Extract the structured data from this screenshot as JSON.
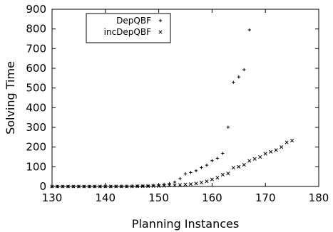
{
  "chart_data": {
    "type": "scatter",
    "title": "",
    "xlabel": "Planning Instances",
    "ylabel": "Solving Time",
    "xlim": [
      130,
      180
    ],
    "ylim": [
      0,
      900
    ],
    "xticks": [
      130,
      140,
      150,
      160,
      170,
      180
    ],
    "yticks": [
      0,
      100,
      200,
      300,
      400,
      500,
      600,
      700,
      800,
      900
    ],
    "grid": false,
    "legend_position": "top-left",
    "series": [
      {
        "name": "DepQBF",
        "marker": "+",
        "points": [
          [
            130,
            0
          ],
          [
            131,
            0
          ],
          [
            132,
            0
          ],
          [
            133,
            0
          ],
          [
            134,
            0
          ],
          [
            135,
            0
          ],
          [
            136,
            0
          ],
          [
            137,
            0
          ],
          [
            138,
            0
          ],
          [
            139,
            0
          ],
          [
            140,
            0
          ],
          [
            141,
            0
          ],
          [
            142,
            1
          ],
          [
            143,
            1
          ],
          [
            144,
            1
          ],
          [
            145,
            2
          ],
          [
            146,
            2
          ],
          [
            147,
            3
          ],
          [
            148,
            4
          ],
          [
            149,
            6
          ],
          [
            150,
            8
          ],
          [
            151,
            11
          ],
          [
            152,
            15
          ],
          [
            153,
            22
          ],
          [
            154,
            40
          ],
          [
            155,
            64
          ],
          [
            156,
            71
          ],
          [
            157,
            80
          ],
          [
            158,
            96
          ],
          [
            159,
            108
          ],
          [
            160,
            131
          ],
          [
            161,
            143
          ],
          [
            162,
            168
          ],
          [
            163,
            301
          ],
          [
            164,
            529
          ],
          [
            165,
            556
          ],
          [
            166,
            593
          ],
          [
            167,
            795
          ]
        ]
      },
      {
        "name": "incDepQBF",
        "marker": "x",
        "points": [
          [
            130,
            0
          ],
          [
            131,
            0
          ],
          [
            132,
            0
          ],
          [
            133,
            0
          ],
          [
            134,
            0
          ],
          [
            135,
            0
          ],
          [
            136,
            0
          ],
          [
            137,
            0
          ],
          [
            138,
            0
          ],
          [
            139,
            0
          ],
          [
            140,
            0
          ],
          [
            141,
            0
          ],
          [
            142,
            0
          ],
          [
            143,
            0
          ],
          [
            144,
            0
          ],
          [
            145,
            0
          ],
          [
            146,
            1
          ],
          [
            147,
            1
          ],
          [
            148,
            1
          ],
          [
            149,
            2
          ],
          [
            150,
            2
          ],
          [
            151,
            3
          ],
          [
            152,
            5
          ],
          [
            153,
            6
          ],
          [
            154,
            8
          ],
          [
            155,
            10
          ],
          [
            156,
            12
          ],
          [
            157,
            15
          ],
          [
            158,
            20
          ],
          [
            159,
            26
          ],
          [
            160,
            36
          ],
          [
            161,
            44
          ],
          [
            162,
            60
          ],
          [
            163,
            66
          ],
          [
            164,
            95
          ],
          [
            165,
            100
          ],
          [
            166,
            110
          ],
          [
            167,
            130
          ],
          [
            168,
            140
          ],
          [
            169,
            150
          ],
          [
            170,
            166
          ],
          [
            171,
            176
          ],
          [
            172,
            185
          ],
          [
            173,
            200
          ],
          [
            174,
            224
          ],
          [
            175,
            233
          ]
        ]
      }
    ]
  }
}
